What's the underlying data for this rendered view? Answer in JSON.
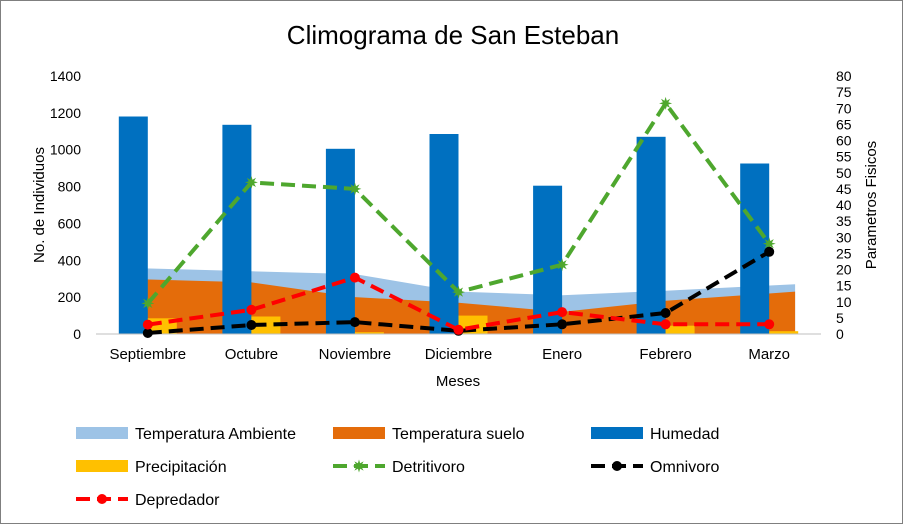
{
  "chart_data": {
    "type": "combo",
    "title": "Climograma de San Esteban",
    "xlabel": "Meses",
    "ylabel": "No. de Individuos",
    "y2label": "Parametros Fisicos",
    "categories": [
      "Septiembre",
      "Octubre",
      "Noviembre",
      "Diciembre",
      "Enero",
      "Febrero",
      "Marzo"
    ],
    "ylim": [
      0,
      1400
    ],
    "y_ticks": [
      "0",
      "200",
      "400",
      "600",
      "800",
      "1000",
      "1200",
      "1400"
    ],
    "y2lim": [
      0,
      80
    ],
    "y2_ticks": [
      "0",
      "5",
      "10",
      "15",
      "20",
      "25",
      "30",
      "35",
      "40",
      "45",
      "50",
      "55",
      "60",
      "65",
      "70",
      "75",
      "80"
    ],
    "grid": false,
    "legend_position": "bottom",
    "series": [
      {
        "name": "Temperatura Ambiente",
        "kind": "area",
        "axis": "primary",
        "color": "#9dc3e6",
        "values": [
          360,
          340,
          325,
          230,
          210,
          235,
          270
        ]
      },
      {
        "name": "Temperatura suelo",
        "kind": "area",
        "axis": "primary",
        "color": "#e46c0a",
        "values": [
          300,
          280,
          200,
          170,
          120,
          180,
          230
        ]
      },
      {
        "name": "Humedad",
        "kind": "bar",
        "axis": "primary",
        "color": "#0070c0",
        "values": [
          1180,
          1135,
          1005,
          1085,
          805,
          1070,
          925
        ]
      },
      {
        "name": "Precipitación",
        "kind": "bar",
        "axis": "primary",
        "color": "#ffc000",
        "values": [
          85,
          95,
          10,
          100,
          0,
          45,
          15
        ]
      },
      {
        "name": "Detritivoro",
        "kind": "line",
        "axis": "secondary",
        "color": "#4ea72e",
        "marker": "star",
        "values": [
          9.5,
          47,
          45,
          13,
          21.5,
          71.5,
          28
        ]
      },
      {
        "name": "Omnivoro",
        "kind": "line",
        "axis": "secondary",
        "color": "#000000",
        "marker": "circle",
        "values": [
          0.3,
          2.8,
          3.7,
          1,
          3,
          6.5,
          25.5
        ]
      },
      {
        "name": "Depredador",
        "kind": "line",
        "axis": "secondary",
        "color": "#ff0000",
        "marker": "circle",
        "values": [
          2.9,
          7.5,
          17.5,
          1.3,
          6.8,
          3,
          3
        ]
      }
    ]
  }
}
